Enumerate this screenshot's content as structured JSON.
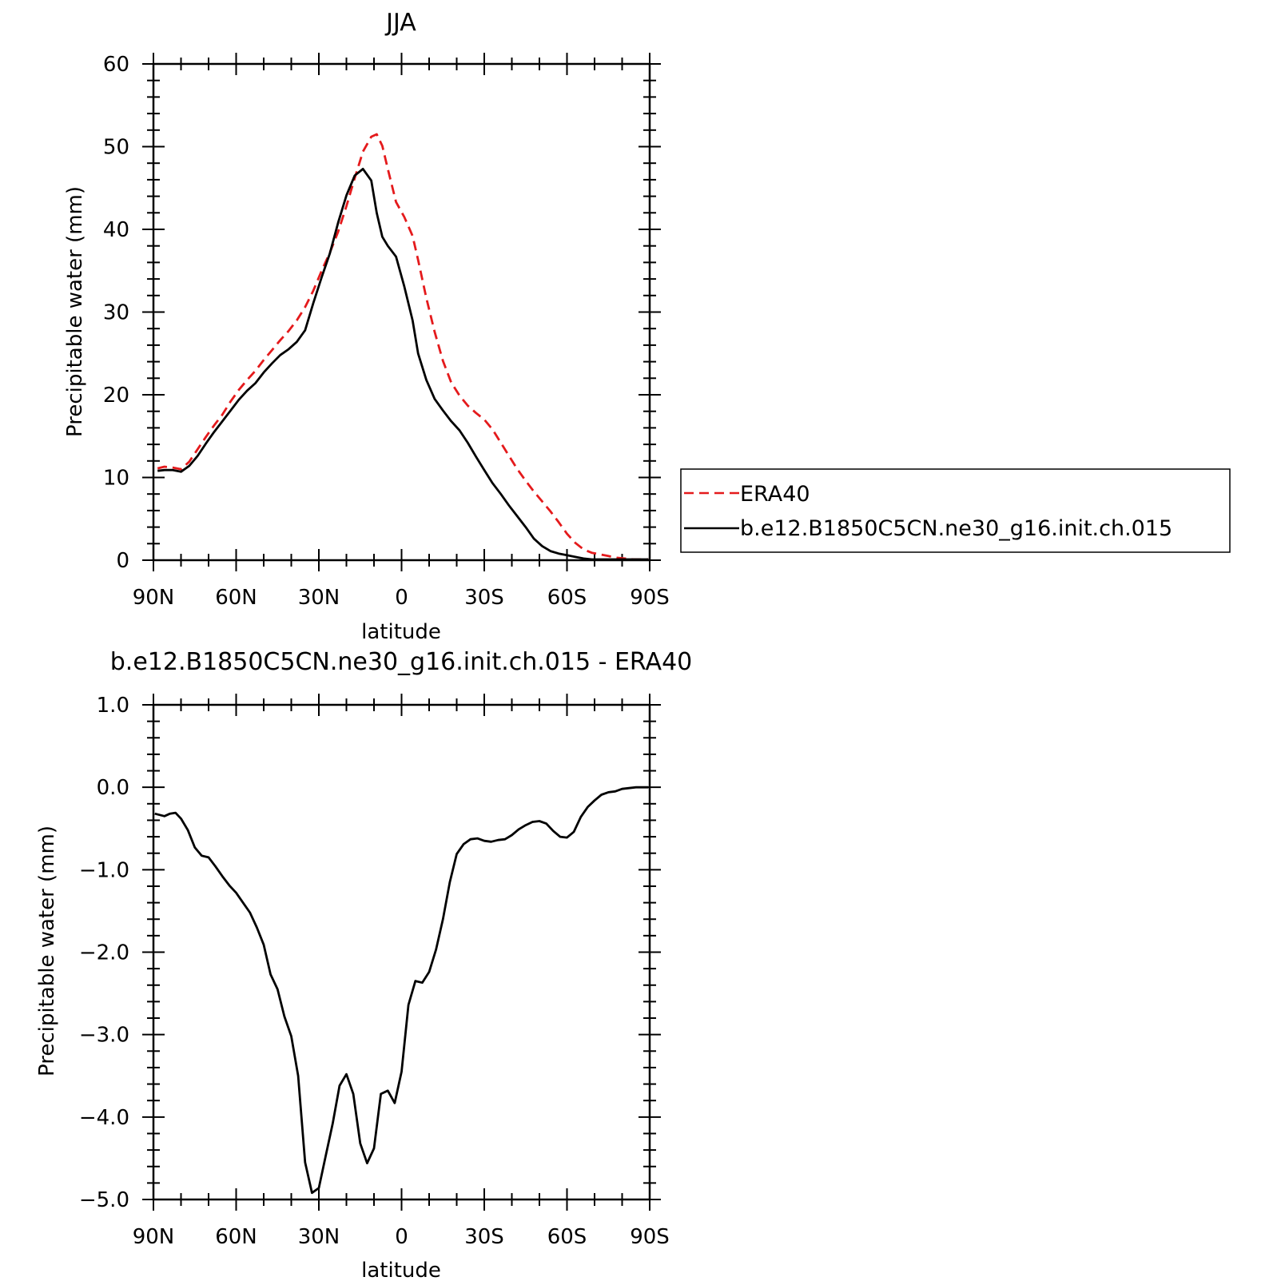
{
  "colors": {
    "era40": "#e41a1c",
    "model": "#000000",
    "axis": "#000000"
  },
  "chart_data": [
    {
      "type": "line",
      "title": "JJA",
      "xlabel": "latitude",
      "ylabel": "Precipitable water (mm)",
      "xlim": [
        90,
        -90
      ],
      "ylim": [
        0,
        60
      ],
      "xticks": [
        90,
        60,
        30,
        0,
        -30,
        -60,
        -90
      ],
      "xtick_labels": [
        "90N",
        "60N",
        "30N",
        "0",
        "30S",
        "60S",
        "90S"
      ],
      "yticks": [
        0,
        10,
        20,
        30,
        40,
        50,
        60
      ],
      "ytick_labels": [
        "0",
        "10",
        "20",
        "30",
        "40",
        "50",
        "60"
      ],
      "x": [
        88.5,
        86,
        83,
        80,
        77,
        74,
        71,
        68,
        65,
        62,
        59,
        56,
        53,
        50,
        47,
        44,
        41,
        38,
        35,
        32,
        29,
        26,
        23,
        20,
        17,
        14,
        11,
        9,
        7,
        5,
        2,
        -1,
        -4,
        -6,
        -9,
        -12,
        -15,
        -18,
        -21,
        -24,
        -27,
        -30,
        -33,
        -36,
        -39,
        -42,
        -45,
        -48,
        -51,
        -54,
        -57,
        -60,
        -63,
        -66,
        -69,
        -72,
        -75,
        -78,
        -81,
        -84,
        -87,
        -89.5
      ],
      "legend": {
        "placement": "right"
      },
      "series": [
        {
          "name": "ERA40",
          "style": "dashed",
          "color": "#e41a1c",
          "values": [
            11.1,
            11.3,
            11.2,
            11.0,
            11.9,
            13.4,
            14.9,
            16.3,
            17.6,
            19.2,
            20.6,
            21.8,
            22.9,
            24.2,
            25.4,
            26.6,
            27.7,
            29.0,
            30.6,
            32.6,
            35.0,
            37.2,
            39.7,
            42.8,
            46.2,
            49.4,
            51.2,
            51.5,
            50.1,
            47.3,
            43.3,
            41.5,
            39.2,
            36.3,
            31.7,
            27.6,
            24.1,
            21.5,
            19.9,
            18.7,
            17.8,
            17.0,
            15.8,
            14.2,
            12.6,
            11.0,
            9.6,
            8.3,
            7.1,
            5.9,
            4.6,
            3.2,
            2.1,
            1.3,
            0.9,
            0.7,
            0.5,
            0.3,
            0.2,
            0.1,
            0.1,
            0.1
          ]
        },
        {
          "name": "b.e12.B1850C5CN.ne30_g16.init.ch.015",
          "style": "solid",
          "color": "#000000",
          "values": [
            10.8,
            10.9,
            10.9,
            10.7,
            11.4,
            12.6,
            14.1,
            15.5,
            16.8,
            18.1,
            19.4,
            20.5,
            21.4,
            22.7,
            23.8,
            24.8,
            25.5,
            26.4,
            27.8,
            31.1,
            34.2,
            37.1,
            40.8,
            44.1,
            46.5,
            47.3,
            45.9,
            42.0,
            39.1,
            38.0,
            36.7,
            33.1,
            29.0,
            25.0,
            21.8,
            19.5,
            18.1,
            16.8,
            15.7,
            14.2,
            12.5,
            10.9,
            9.3,
            8.0,
            6.6,
            5.3,
            4.0,
            2.6,
            1.7,
            1.1,
            0.8,
            0.6,
            0.4,
            0.2,
            0.1,
            0.1,
            0.1,
            0.1,
            0.1,
            0.1,
            0.1,
            0.1
          ]
        }
      ]
    },
    {
      "type": "line",
      "title": "b.e12.B1850C5CN.ne30_g16.init.ch.015 - ERA40",
      "xlabel": "latitude",
      "ylabel": "Precipitable water (mm)",
      "xlim": [
        90,
        -90
      ],
      "ylim": [
        -5.0,
        1.0
      ],
      "xticks": [
        90,
        60,
        30,
        0,
        -30,
        -60,
        -90
      ],
      "xtick_labels": [
        "90N",
        "60N",
        "30N",
        "0",
        "30S",
        "60S",
        "90S"
      ],
      "yticks": [
        1.0,
        0.0,
        -1.0,
        -2.0,
        -3.0,
        -4.0,
        -5.0
      ],
      "ytick_labels": [
        "1.0",
        "0.0",
        "-1.0",
        "-2.0",
        "-3.0",
        "-4.0",
        "-5.0"
      ],
      "series": [
        {
          "style": "solid",
          "color": "#000000",
          "x": [
            89.5,
            86,
            84,
            82,
            80,
            77.5,
            75,
            72.5,
            70,
            67.5,
            65,
            62.5,
            60,
            57.5,
            55,
            52.5,
            50,
            47.5,
            45,
            42.5,
            40,
            37.5,
            35,
            32.5,
            30,
            27.5,
            25,
            22.5,
            20,
            17.5,
            15,
            12.5,
            10,
            7.5,
            5,
            2.5,
            0,
            -2.5,
            -5,
            -7.5,
            -10,
            -12.5,
            -15,
            -17.5,
            -20,
            -22.5,
            -25,
            -27.5,
            -30,
            -32.5,
            -35,
            -37.5,
            -40,
            -42.5,
            -45,
            -47.5,
            -50,
            -52.5,
            -55,
            -57.5,
            -60,
            -62.5,
            -65,
            -67.5,
            -70,
            -72.5,
            -75,
            -77.5,
            -80,
            -82.5,
            -85,
            -87.5,
            -89.5
          ],
          "values": [
            -0.32,
            -0.35,
            -0.32,
            -0.31,
            -0.38,
            -0.52,
            -0.73,
            -0.83,
            -0.85,
            -0.96,
            -1.08,
            -1.19,
            -1.28,
            -1.4,
            -1.52,
            -1.7,
            -1.91,
            -2.27,
            -2.45,
            -2.78,
            -3.02,
            -3.5,
            -4.55,
            -4.92,
            -4.86,
            -4.47,
            -4.08,
            -3.62,
            -3.48,
            -3.72,
            -4.32,
            -4.56,
            -4.38,
            -3.72,
            -3.68,
            -3.83,
            -3.45,
            -2.64,
            -2.35,
            -2.37,
            -2.24,
            -1.97,
            -1.6,
            -1.15,
            -0.81,
            -0.69,
            -0.63,
            -0.62,
            -0.65,
            -0.66,
            -0.64,
            -0.63,
            -0.58,
            -0.51,
            -0.46,
            -0.42,
            -0.41,
            -0.44,
            -0.53,
            -0.6,
            -0.61,
            -0.54,
            -0.36,
            -0.24,
            -0.16,
            -0.09,
            -0.06,
            -0.05,
            -0.02,
            -0.01,
            0.0,
            0.0,
            0.0
          ]
        }
      ]
    }
  ]
}
